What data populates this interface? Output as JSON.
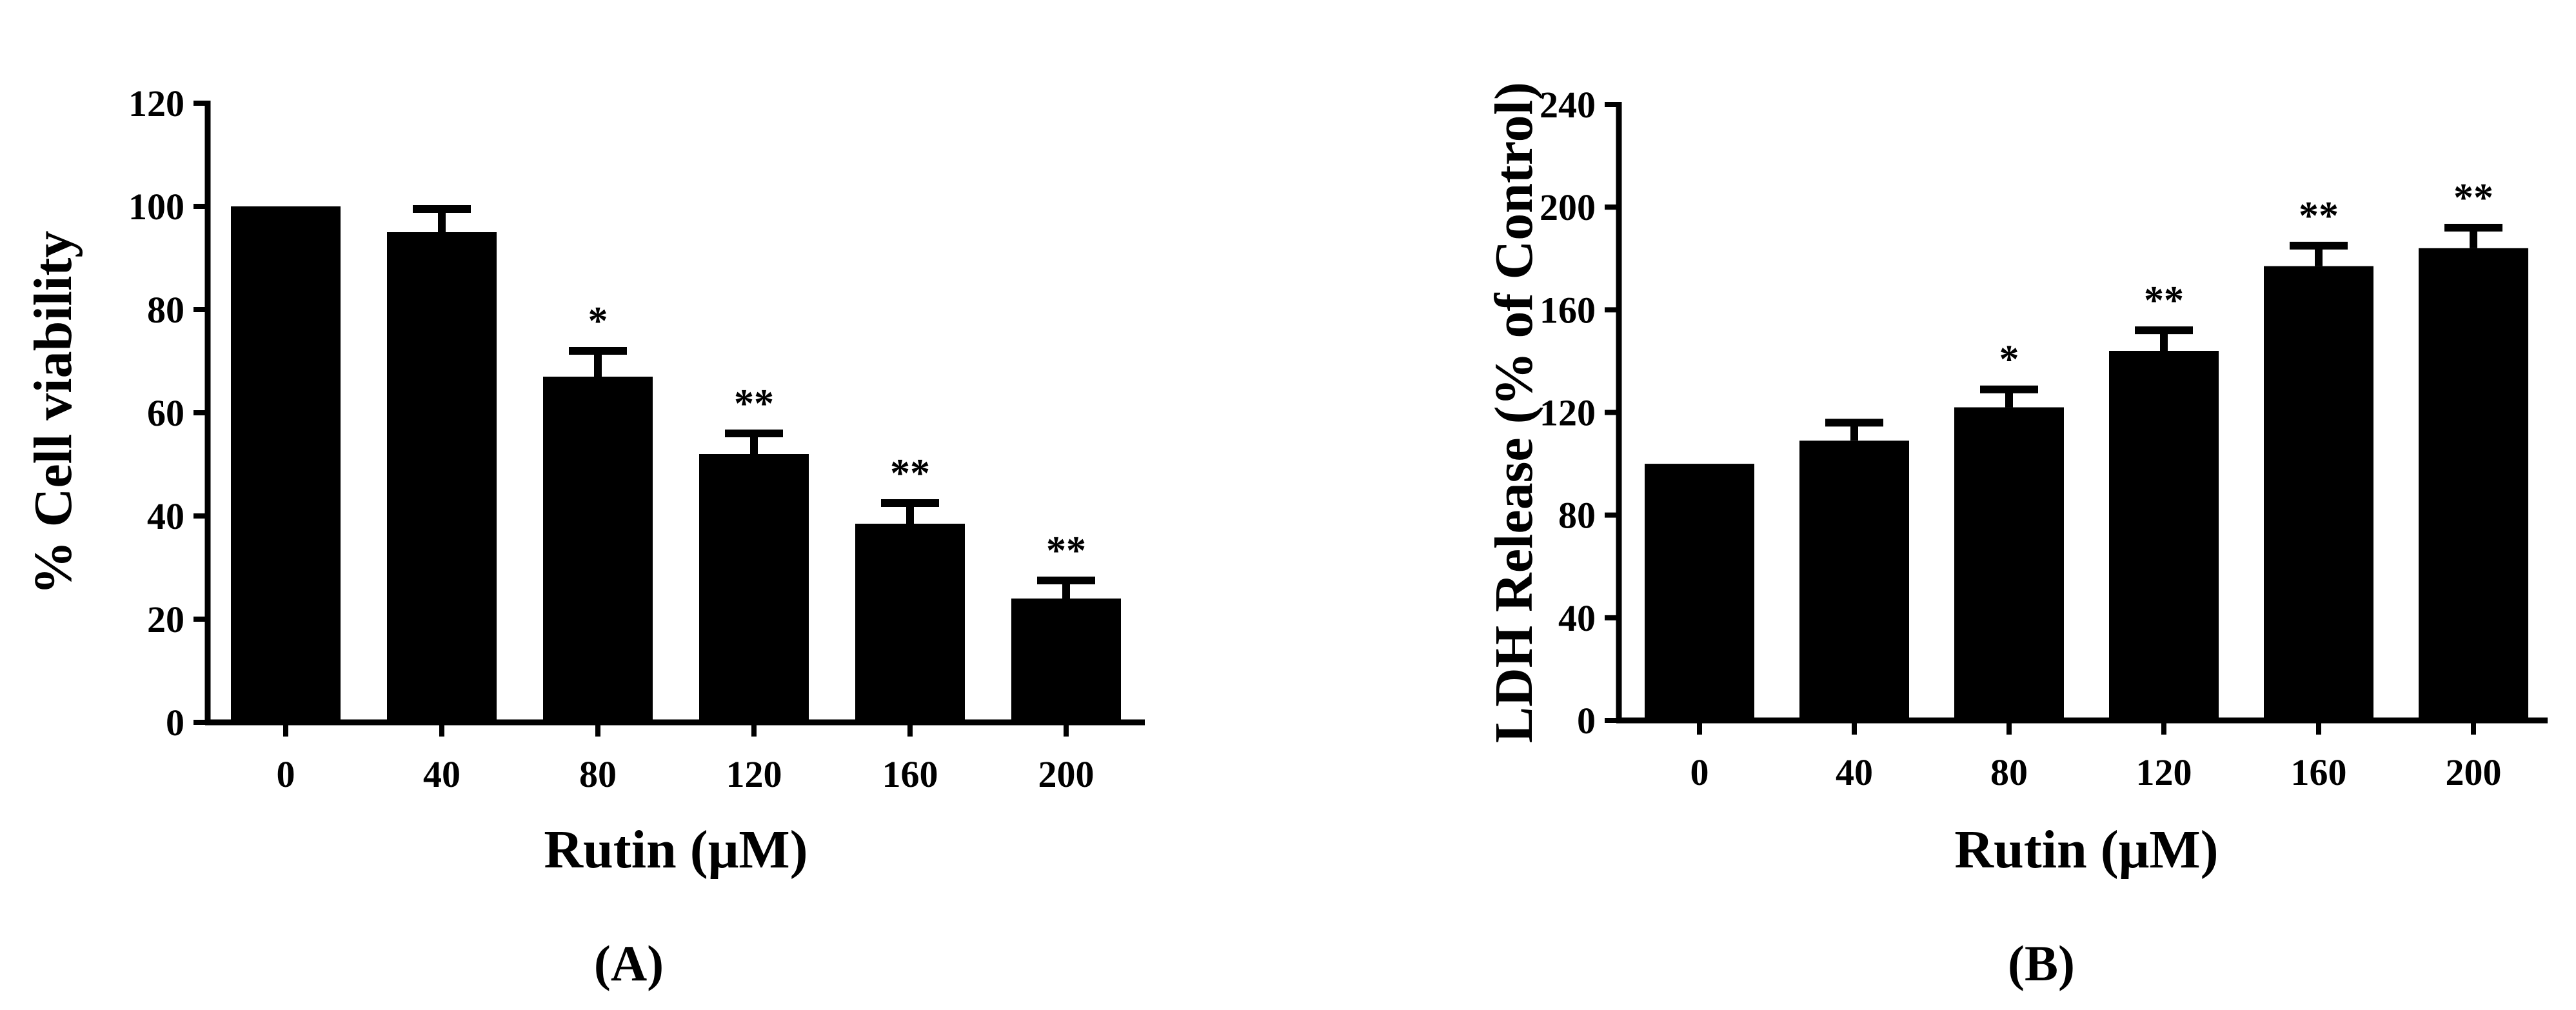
{
  "chart_data": [
    {
      "type": "bar",
      "panel_label": "(A)",
      "categories": [
        "0",
        "40",
        "80",
        "120",
        "160",
        "200"
      ],
      "values": [
        100,
        95,
        67,
        52,
        38.5,
        24
      ],
      "error": [
        0,
        4.5,
        5,
        4,
        4,
        3.5
      ],
      "significance": [
        "",
        "",
        "*",
        "**",
        "**",
        "**"
      ],
      "xlabel": "Rutin (μM)",
      "ylabel": "% Cell viability",
      "ylim": [
        0,
        120
      ],
      "yticks": [
        "0",
        "20",
        "40",
        "60",
        "80",
        "100",
        "120"
      ],
      "grid": false,
      "bar_color": "#000000"
    },
    {
      "type": "bar",
      "panel_label": "(B)",
      "categories": [
        "0",
        "40",
        "80",
        "120",
        "160",
        "200"
      ],
      "values": [
        100,
        109,
        122,
        144,
        177,
        184
      ],
      "error": [
        0,
        7,
        7,
        8,
        8,
        8
      ],
      "significance": [
        "",
        "",
        "*",
        "**",
        "**",
        "**"
      ],
      "xlabel": "Rutin (μM)",
      "ylabel": "LDH Release (% of Control)",
      "ylim": [
        0,
        240
      ],
      "yticks": [
        "0",
        "40",
        "80",
        "120",
        "160",
        "200",
        "240"
      ],
      "grid": false,
      "bar_color": "#000000"
    }
  ]
}
